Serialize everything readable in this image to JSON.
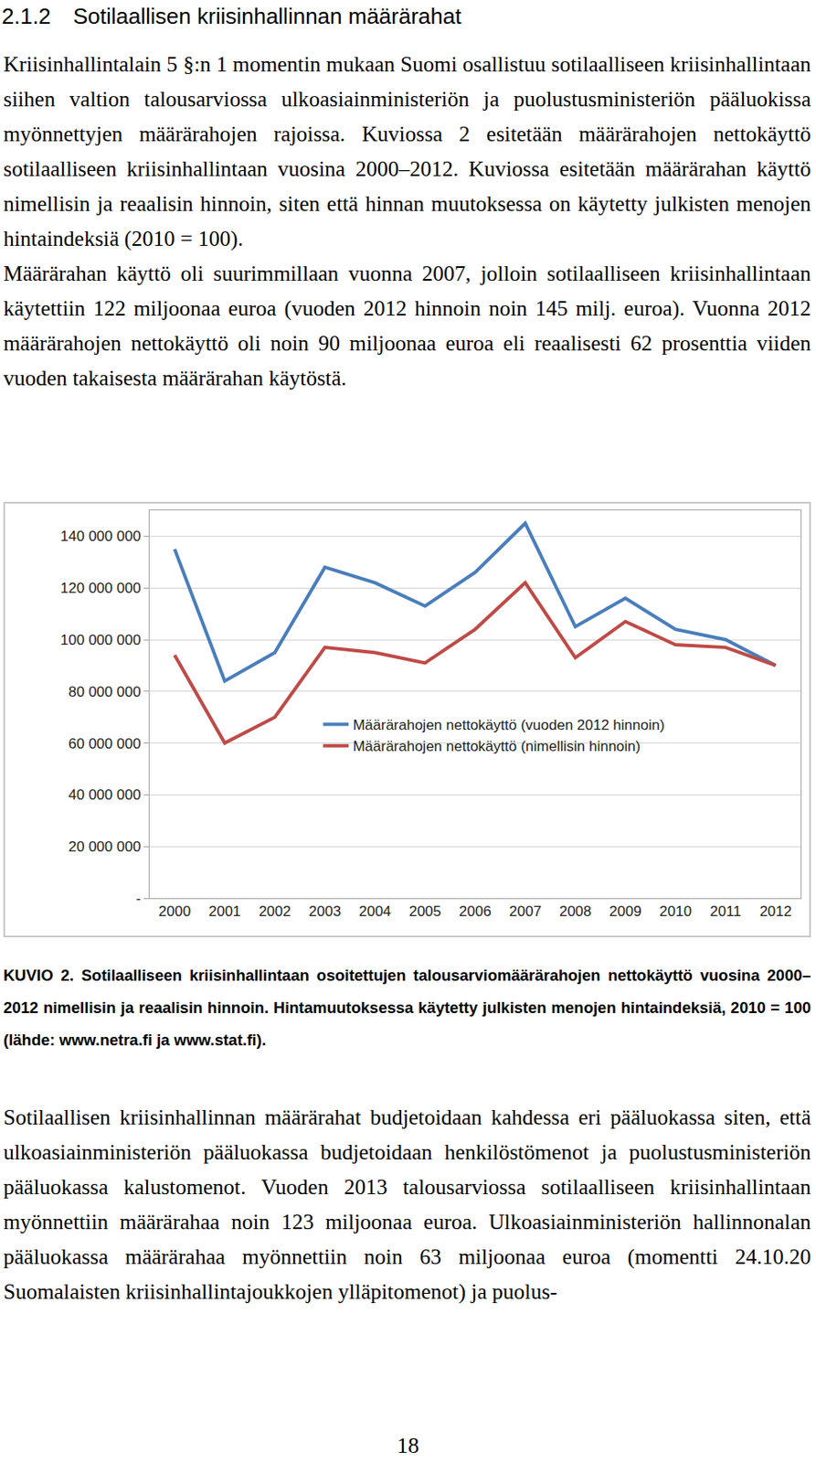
{
  "heading": {
    "number": "2.1.2",
    "title": "Sotilaallisen kriisinhallinnan määrärahat"
  },
  "paragraphs_before": [
    "Kriisinhallintalain 5 §:n 1 momentin mukaan Suomi osallistuu sotilaalliseen kriisinhallintaan siihen valtion talousarviossa ulkoasiainministeriön ja puolustusministeriön pääluokissa myönnettyjen määrärahojen rajoissa. Kuviossa 2 esitetään määrärahojen nettokäyttö sotilaalliseen kriisinhallintaan vuosina 2000–2012. Kuviossa esitetään määrärahan käyttö nimellisin ja reaalisin hinnoin, siten että hinnan muutoksessa on käytetty julkisten menojen hintaindeksiä (2010 = 100).",
    "Määrärahan käyttö oli suurimmillaan vuonna 2007, jolloin sotilaalliseen kriisinhallintaan käytettiin 122 miljoonaa euroa (vuoden 2012 hinnoin noin 145 milj. euroa). Vuonna 2012 määrärahojen nettokäyttö oli noin 90 miljoonaa euroa eli reaalisesti 62 prosenttia viiden vuoden takaisesta määrärahan käytöstä."
  ],
  "chart_data": {
    "type": "line",
    "categories": [
      "2000",
      "2001",
      "2002",
      "2003",
      "2004",
      "2005",
      "2006",
      "2007",
      "2008",
      "2009",
      "2010",
      "2011",
      "2012"
    ],
    "series": [
      {
        "name": "Määrärahojen nettokäyttö (vuoden 2012 hinnoin)",
        "color": "#4a7ebb",
        "values": [
          135000000,
          84000000,
          95000000,
          128000000,
          122000000,
          113000000,
          126000000,
          145000000,
          105000000,
          116000000,
          104000000,
          100000000,
          90000000
        ]
      },
      {
        "name": "Määrärahojen nettokäyttö (nimellisin hinnoin)",
        "color": "#be4b48",
        "values": [
          94000000,
          60000000,
          70000000,
          97000000,
          95000000,
          91000000,
          104000000,
          122000000,
          93000000,
          107000000,
          98000000,
          97000000,
          90000000
        ]
      }
    ],
    "ylim": [
      0,
      150000000
    ],
    "yticks": [
      {
        "value": 0,
        "label": "-"
      },
      {
        "value": 20000000,
        "label": "20 000 000"
      },
      {
        "value": 40000000,
        "label": "40 000 000"
      },
      {
        "value": 60000000,
        "label": "60 000 000"
      },
      {
        "value": 80000000,
        "label": "80 000 000"
      },
      {
        "value": 100000000,
        "label": "100 000 000"
      },
      {
        "value": 120000000,
        "label": "120 000 000"
      },
      {
        "value": 140000000,
        "label": "140 000 000"
      }
    ],
    "grid": true,
    "legend": "center"
  },
  "caption": {
    "label": "KUVIO 2.",
    "text": "Sotilaalliseen kriisinhallintaan osoitettujen talousarviomäärärahojen nettokäyttö vuosina 2000–2012 nimellisin ja reaalisin hinnoin. Hintamuutoksessa käytetty julkisten menojen hintaindeksiä, 2010 = 100 (lähde: www.netra.fi ja www.stat.fi)."
  },
  "paragraphs_after": [
    "Sotilaallisen kriisinhallinnan määrärahat budjetoidaan kahdessa eri pääluokassa siten, että ulkoasiainministeriön pääluokassa budjetoidaan henkilöstömenot ja puolustusministeriön pääluokassa kalustomenot. Vuoden 2013 talousarviossa sotilaalliseen kriisinhallintaan myönnettiin määrärahaa noin 123 miljoonaa euroa. Ulkoasiainministeriön hallinnonalan pääluokassa määrärahaa myönnettiin noin 63 miljoonaa euroa (momentti 24.10.20 Suomalaisten kriisinhallintajoukkojen ylläpitomenot) ja puolus-"
  ],
  "page_number": "18"
}
